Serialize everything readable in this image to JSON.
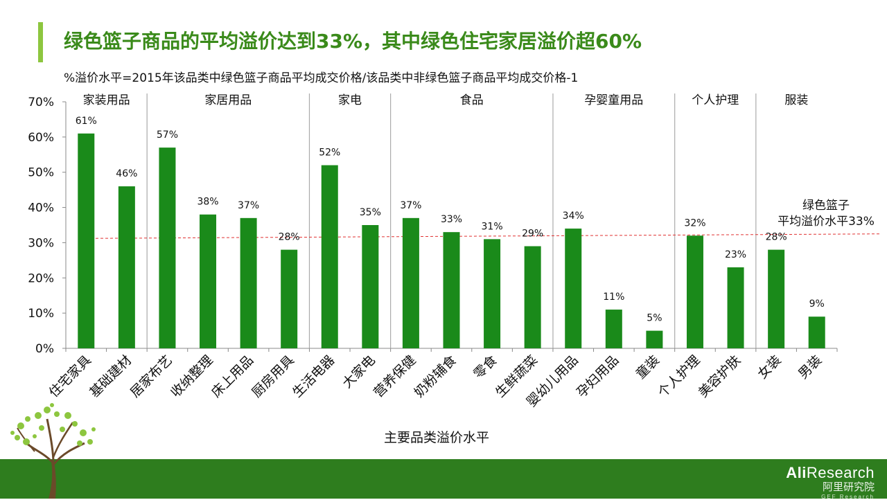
{
  "title": "绿色篮子商品的平均溢价达到33%，其中绿色住宅家居溢价超60%",
  "subtitle": "%溢价水平=2015年该品类中绿色篮子商品平均成交价格/该品类中非绿色篮子商品平均成交价格-1",
  "logo": {
    "brand_bold": "Ali",
    "brand_rest": "Research",
    "cn": "阿里研究院",
    "sub": "GEF Research"
  },
  "colors": {
    "bar": "#1a8a1a",
    "accent": "#8dc63f",
    "title": "#3a8a1a",
    "footer": "#2e7d1e",
    "avg_line": "#e03030"
  },
  "chart_data": {
    "type": "bar",
    "xlabel": "主要品类溢价水平",
    "ylim": [
      0,
      0.7
    ],
    "yticks": [
      "0%",
      "10%",
      "20%",
      "30%",
      "40%",
      "50%",
      "60%",
      "70%"
    ],
    "categories": [
      "住宅家具",
      "基础建材",
      "居家布艺",
      "收纳整理",
      "床上用品",
      "厨房用具",
      "生活电器",
      "大家电",
      "营养保健",
      "奶粉辅食",
      "零食",
      "生鲜蔬菜",
      "婴幼儿用品",
      "孕妇用品",
      "童装",
      "个人护理",
      "美容护肤",
      "女装",
      "男装"
    ],
    "values": [
      0.61,
      0.46,
      0.57,
      0.38,
      0.37,
      0.28,
      0.52,
      0.35,
      0.37,
      0.33,
      0.31,
      0.29,
      0.34,
      0.11,
      0.05,
      0.32,
      0.23,
      0.28,
      0.09
    ],
    "data_labels": [
      "61%",
      "46%",
      "57%",
      "38%",
      "37%",
      "28%",
      "52%",
      "35%",
      "37%",
      "33%",
      "31%",
      "29%",
      "34%",
      "11%",
      "5%",
      "32%",
      "23%",
      "28%",
      "9%"
    ],
    "groups": [
      {
        "name": "家装用品",
        "start": 0,
        "end": 1
      },
      {
        "name": "家居用品",
        "start": 2,
        "end": 5
      },
      {
        "name": "家电",
        "start": 6,
        "end": 7
      },
      {
        "name": "食品",
        "start": 8,
        "end": 11
      },
      {
        "name": "孕婴童用品",
        "start": 12,
        "end": 14
      },
      {
        "name": "个人护理",
        "start": 15,
        "end": 16
      },
      {
        "name": "服装",
        "start": 17,
        "end": 18
      }
    ],
    "average": {
      "value": 0.33,
      "label_line1": "绿色篮子",
      "label_line2": "平均溢价水平33%"
    },
    "grid": false
  }
}
